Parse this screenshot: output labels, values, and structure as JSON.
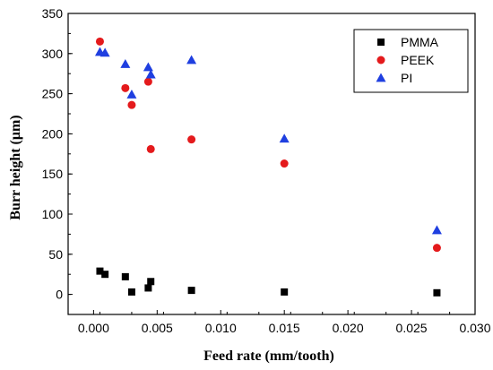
{
  "chart_data": {
    "type": "scatter",
    "title": "",
    "xlabel": "Feed rate (mm/tooth)",
    "ylabel": "Burr height (μm)",
    "xlim": [
      -0.002,
      0.03
    ],
    "ylim": [
      -25,
      350
    ],
    "xticks": [
      0.0,
      0.005,
      0.01,
      0.015,
      0.02,
      0.025,
      0.03
    ],
    "xtick_labels": [
      "0.000",
      "0.005",
      "0.010",
      "0.015",
      "0.020",
      "0.025",
      "0.030"
    ],
    "yticks": [
      0,
      50,
      100,
      150,
      200,
      250,
      300,
      350
    ],
    "ytick_labels": [
      "0",
      "50",
      "100",
      "150",
      "200",
      "250",
      "300",
      "350"
    ],
    "grid": false,
    "legend_position": "top-right",
    "series": [
      {
        "name": "PMMA",
        "marker": "square",
        "color": "#000000",
        "points": [
          {
            "x": 0.0005,
            "y": 29
          },
          {
            "x": 0.0009,
            "y": 25
          },
          {
            "x": 0.0025,
            "y": 22
          },
          {
            "x": 0.003,
            "y": 3
          },
          {
            "x": 0.0043,
            "y": 8
          },
          {
            "x": 0.0045,
            "y": 16
          },
          {
            "x": 0.0077,
            "y": 5
          },
          {
            "x": 0.015,
            "y": 3
          },
          {
            "x": 0.027,
            "y": 2
          }
        ]
      },
      {
        "name": "PEEK",
        "marker": "circle",
        "color": "#e41a1c",
        "points": [
          {
            "x": 0.0005,
            "y": 315
          },
          {
            "x": 0.0025,
            "y": 257
          },
          {
            "x": 0.003,
            "y": 236
          },
          {
            "x": 0.0043,
            "y": 265
          },
          {
            "x": 0.0045,
            "y": 181
          },
          {
            "x": 0.0077,
            "y": 193
          },
          {
            "x": 0.015,
            "y": 163
          },
          {
            "x": 0.027,
            "y": 58
          }
        ]
      },
      {
        "name": "PI",
        "marker": "triangle",
        "color": "#1f3fe0",
        "points": [
          {
            "x": 0.0005,
            "y": 302
          },
          {
            "x": 0.0009,
            "y": 301
          },
          {
            "x": 0.0025,
            "y": 287
          },
          {
            "x": 0.003,
            "y": 249
          },
          {
            "x": 0.0043,
            "y": 283
          },
          {
            "x": 0.0045,
            "y": 274
          },
          {
            "x": 0.0077,
            "y": 292
          },
          {
            "x": 0.015,
            "y": 194
          },
          {
            "x": 0.027,
            "y": 80
          }
        ]
      }
    ]
  }
}
